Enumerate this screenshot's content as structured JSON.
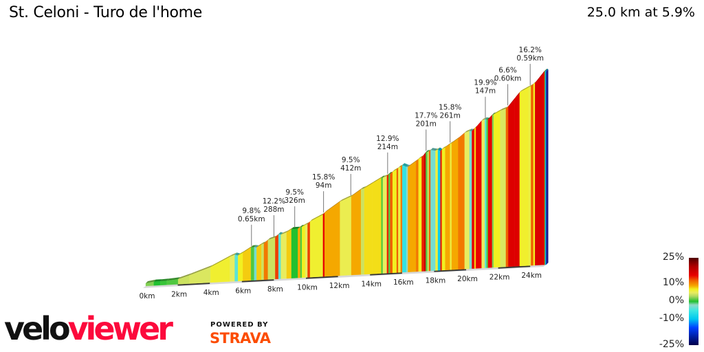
{
  "header": {
    "title": "St. Celoni - Turo de l'home",
    "summary": "25.0 km at 5.9%"
  },
  "chart_data": {
    "type": "area",
    "subtype": "3d-elevation-profile-colored-by-gradient",
    "distance_km": 25.0,
    "average_gradient_pct": 5.9,
    "x_ticks": [
      "0km",
      "2km",
      "4km",
      "6km",
      "8km",
      "10km",
      "12km",
      "14km",
      "16km",
      "18km",
      "20km",
      "22km",
      "24km"
    ],
    "x_tick_values": [
      0,
      2,
      4,
      6,
      8,
      10,
      12,
      14,
      16,
      18,
      20,
      22,
      24
    ],
    "segments": [
      {
        "length_km": 0.5,
        "gradient_pct": 2
      },
      {
        "length_km": 0.4,
        "gradient_pct": 0
      },
      {
        "length_km": 0.4,
        "gradient_pct": 0.5
      },
      {
        "length_km": 0.7,
        "gradient_pct": 1
      },
      {
        "length_km": 0.7,
        "gradient_pct": 4
      },
      {
        "length_km": 1.3,
        "gradient_pct": 4.5
      },
      {
        "length_km": 1.2,
        "gradient_pct": 6.5
      },
      {
        "length_km": 0.3,
        "gradient_pct": 5
      },
      {
        "length_km": 0.2,
        "gradient_pct": -4
      },
      {
        "length_km": 0.3,
        "gradient_pct": 7
      },
      {
        "length_km": 0.5,
        "gradient_pct": 8
      },
      {
        "length_km": 0.2,
        "gradient_pct": 1
      },
      {
        "length_km": 0.15,
        "gradient_pct": -3
      },
      {
        "length_km": 0.3,
        "gradient_pct": 8
      },
      {
        "length_km": 0.15,
        "gradient_pct": 4
      },
      {
        "length_km": 0.25,
        "gradient_pct": 11
      },
      {
        "length_km": 0.45,
        "gradient_pct": 4
      },
      {
        "length_km": 0.2,
        "gradient_pct": 13
      },
      {
        "length_km": 0.15,
        "gradient_pct": -4
      },
      {
        "length_km": 0.35,
        "gradient_pct": 5
      },
      {
        "length_km": 0.3,
        "gradient_pct": 8
      },
      {
        "length_km": 0.4,
        "gradient_pct": 0
      },
      {
        "length_km": 0.15,
        "gradient_pct": 9
      },
      {
        "length_km": 0.1,
        "gradient_pct": 1
      },
      {
        "length_km": 0.2,
        "gradient_pct": 7
      },
      {
        "length_km": 0.15,
        "gradient_pct": 5
      },
      {
        "length_km": 0.15,
        "gradient_pct": 13
      },
      {
        "length_km": 0.8,
        "gradient_pct": 6.5
      },
      {
        "length_km": 0.1,
        "gradient_pct": 15
      },
      {
        "length_km": 0.95,
        "gradient_pct": 9
      },
      {
        "length_km": 0.7,
        "gradient_pct": 5.5
      },
      {
        "length_km": 0.6,
        "gradient_pct": 9
      },
      {
        "length_km": 0.2,
        "gradient_pct": 4
      },
      {
        "length_km": 0.5,
        "gradient_pct": 7.5
      },
      {
        "length_km": 0.55,
        "gradient_pct": 7.5
      },
      {
        "length_km": 0.1,
        "gradient_pct": 1
      },
      {
        "length_km": 0.25,
        "gradient_pct": 5
      },
      {
        "length_km": 0.1,
        "gradient_pct": 14
      },
      {
        "length_km": 0.1,
        "gradient_pct": 1
      },
      {
        "length_km": 0.15,
        "gradient_pct": 12
      },
      {
        "length_km": 0.25,
        "gradient_pct": 7
      },
      {
        "length_km": 0.1,
        "gradient_pct": 12
      },
      {
        "length_km": 0.15,
        "gradient_pct": 6
      },
      {
        "length_km": 0.1,
        "gradient_pct": 11
      },
      {
        "length_km": 0.25,
        "gradient_pct": -6
      },
      {
        "length_km": 0.1,
        "gradient_pct": -2
      },
      {
        "length_km": 0.5,
        "gradient_pct": 9
      },
      {
        "length_km": 0.15,
        "gradient_pct": 11
      },
      {
        "length_km": 0.2,
        "gradient_pct": 7
      },
      {
        "length_km": 0.15,
        "gradient_pct": 14
      },
      {
        "length_km": 0.1,
        "gradient_pct": 18
      },
      {
        "length_km": 0.1,
        "gradient_pct": 1
      },
      {
        "length_km": 0.1,
        "gradient_pct": 4
      },
      {
        "length_km": 0.1,
        "gradient_pct": 12
      },
      {
        "length_km": 0.3,
        "gradient_pct": -3
      },
      {
        "length_km": 0.15,
        "gradient_pct": 6
      },
      {
        "length_km": 0.15,
        "gradient_pct": -9
      },
      {
        "length_km": 0.1,
        "gradient_pct": 14
      },
      {
        "length_km": 0.2,
        "gradient_pct": 7
      },
      {
        "length_km": 0.3,
        "gradient_pct": 9
      },
      {
        "length_km": 0.1,
        "gradient_pct": 6
      },
      {
        "length_km": 0.4,
        "gradient_pct": 9
      },
      {
        "length_km": 0.4,
        "gradient_pct": 11
      },
      {
        "length_km": 0.3,
        "gradient_pct": 5
      },
      {
        "length_km": 0.15,
        "gradient_pct": -3
      },
      {
        "length_km": 0.15,
        "gradient_pct": 15
      },
      {
        "length_km": 0.1,
        "gradient_pct": 8
      },
      {
        "length_km": 0.35,
        "gradient_pct": 15
      },
      {
        "length_km": 0.2,
        "gradient_pct": 5
      },
      {
        "length_km": 0.1,
        "gradient_pct": -4
      },
      {
        "length_km": 0.1,
        "gradient_pct": 1
      },
      {
        "length_km": 0.25,
        "gradient_pct": 15
      },
      {
        "length_km": 0.1,
        "gradient_pct": 2
      },
      {
        "length_km": 0.4,
        "gradient_pct": 7
      },
      {
        "length_km": 0.35,
        "gradient_pct": 4.5
      },
      {
        "length_km": 0.15,
        "gradient_pct": 12
      },
      {
        "length_km": 0.4,
        "gradient_pct": 16
      },
      {
        "length_km": 0.3,
        "gradient_pct": 16
      },
      {
        "length_km": 0.1,
        "gradient_pct": 7
      },
      {
        "length_km": 0.45,
        "gradient_pct": 6.6
      },
      {
        "length_km": 0.15,
        "gradient_pct": 6
      },
      {
        "length_km": 0.15,
        "gradient_pct": 12
      },
      {
        "length_km": 0.1,
        "gradient_pct": 7
      },
      {
        "length_km": 0.59,
        "gradient_pct": 16.2
      },
      {
        "length_km": 0.05,
        "gradient_pct": 1
      },
      {
        "length_km": 0.05,
        "gradient_pct": -12
      }
    ],
    "annotations": [
      {
        "km": 6.6,
        "line1": "9.8%",
        "line2": "0.65km"
      },
      {
        "km": 8.0,
        "line1": "12.2%",
        "line2": "288m"
      },
      {
        "km": 9.3,
        "line1": "9.5%",
        "line2": "326m"
      },
      {
        "km": 11.1,
        "line1": "15.8%",
        "line2": "94m"
      },
      {
        "km": 12.8,
        "line1": "9.5%",
        "line2": "412m"
      },
      {
        "km": 15.1,
        "line1": "12.9%",
        "line2": "214m"
      },
      {
        "km": 17.5,
        "line1": "17.7%",
        "line2": "201m"
      },
      {
        "km": 19.0,
        "line1": "15.8%",
        "line2": "261m"
      },
      {
        "km": 21.2,
        "line1": "19.9%",
        "line2": "147m"
      },
      {
        "km": 22.6,
        "line1": "6.6%",
        "line2": "0.60km"
      },
      {
        "km": 24.0,
        "line1": "16.2%",
        "line2": "0.59km"
      }
    ],
    "legend": {
      "labels": [
        "25%",
        "10%",
        "0%",
        "-10%",
        "-25%"
      ],
      "values": [
        25,
        10,
        0,
        -10,
        -25
      ],
      "colors": {
        "-25": "#00004a",
        "-15": "#0040ff",
        "-10": "#00c8f0",
        "-5": "#40e8e0",
        "-2": "#90d8c8",
        "0": "#20c030",
        "3": "#b0d860",
        "5": "#e8ec60",
        "7": "#f2f020",
        "9": "#f5a800",
        "12": "#f06000",
        "15": "#e80000",
        "20": "#b00000",
        "25": "#500000"
      }
    }
  },
  "branding": {
    "logo_part1": "velo",
    "logo_part2": "viewer",
    "powered_by": "POWERED BY",
    "strava": "STRAVA",
    "logo_red": "#fc0a3c",
    "strava_orange": "#fc4c02"
  }
}
